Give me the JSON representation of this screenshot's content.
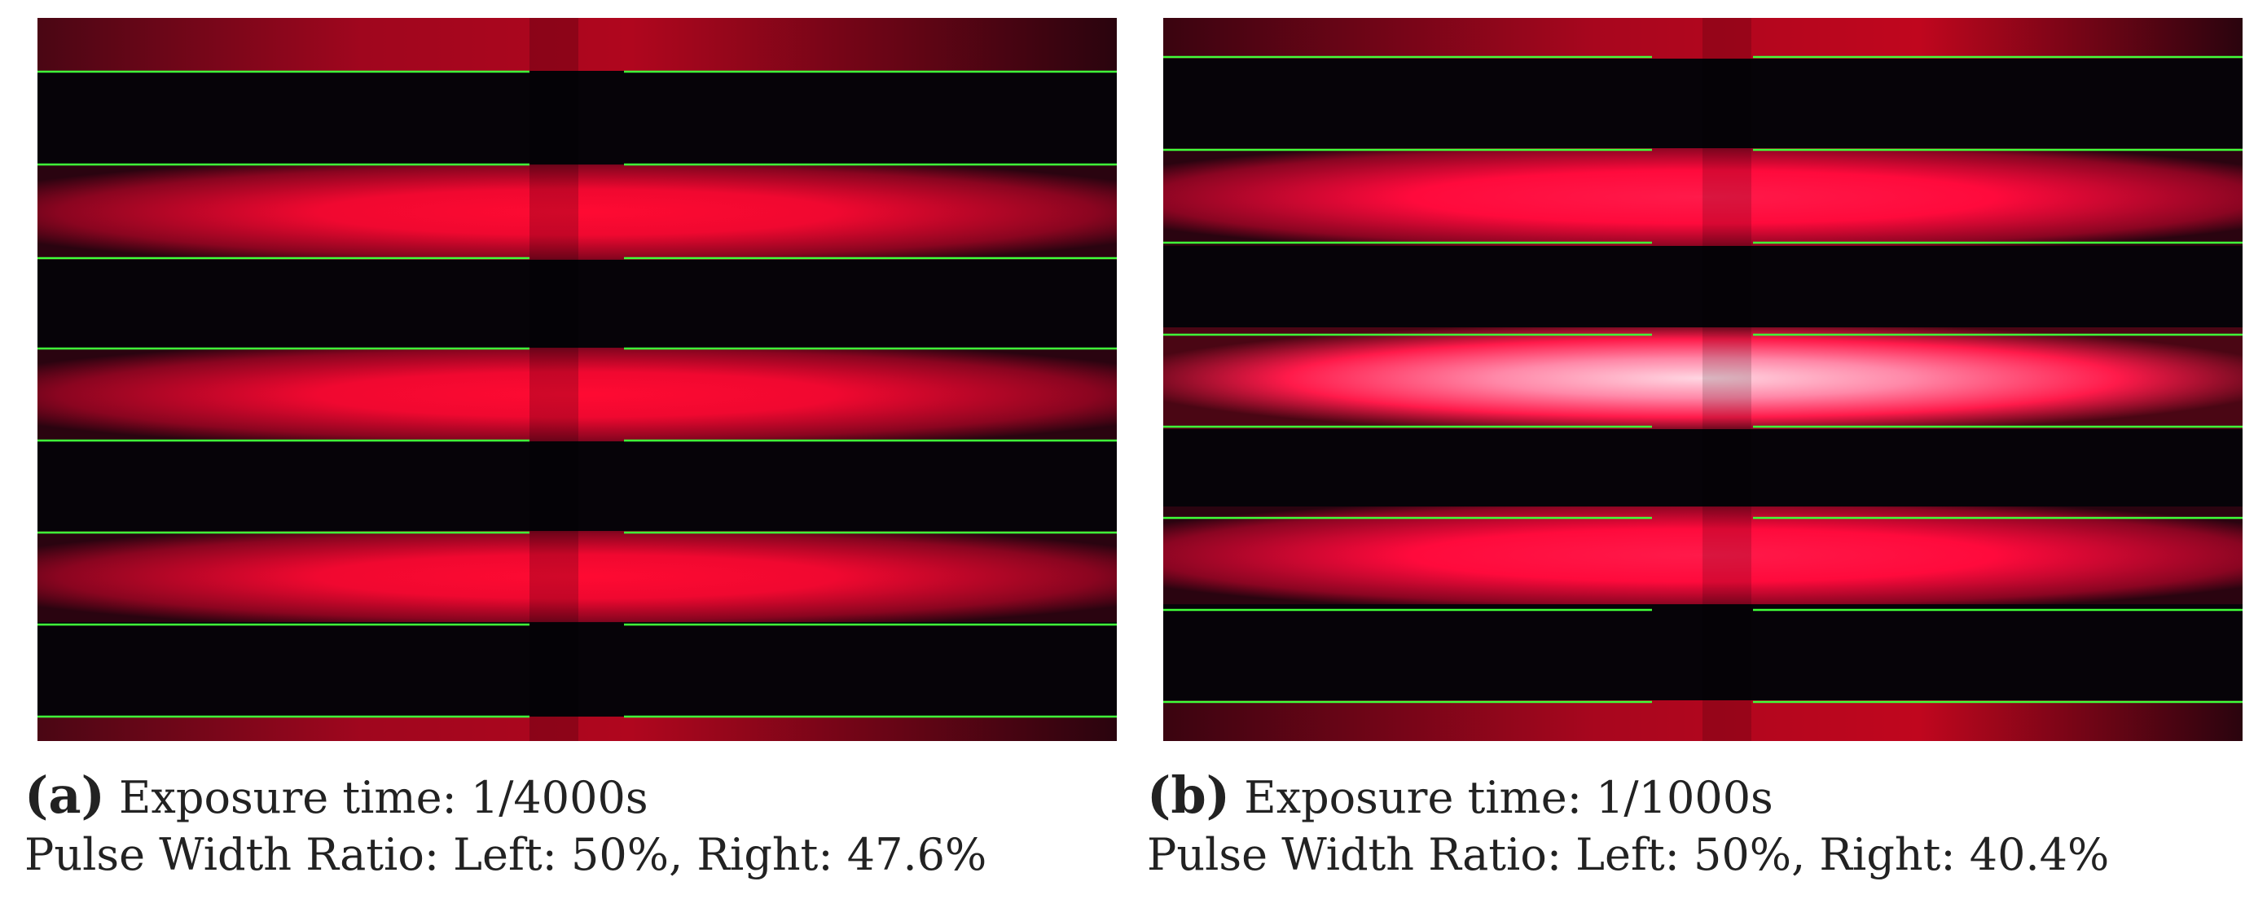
{
  "panels": [
    {
      "tag": "(a)",
      "exposure": "Exposure time: 1/4000s",
      "pulse_ratio": "Pulse Width Ratio: Left: 50%, Right: 47.6%",
      "colors": {
        "band": "#ff0a32",
        "line": "#40ff3a",
        "dark": "#060308"
      }
    },
    {
      "tag": "(b)",
      "exposure": "Exposure time: 1/1000s",
      "pulse_ratio": "Pulse Width Ratio: Left: 50%, Right: 40.4%",
      "colors": {
        "band": "#ff0a3c",
        "core": "#ffd6e2",
        "line": "#40ff3a",
        "dark": "#060308"
      }
    }
  ]
}
